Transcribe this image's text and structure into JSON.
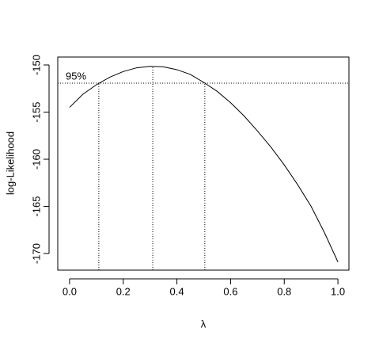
{
  "chart_data": {
    "type": "line",
    "x_label": "λ",
    "y_label": "log-Likelihood",
    "x": [
      0,
      0.05,
      0.1,
      0.15,
      0.2,
      0.25,
      0.3,
      0.35,
      0.4,
      0.45,
      0.5,
      0.55,
      0.6,
      0.65,
      0.7,
      0.75,
      0.8,
      0.85,
      0.9,
      0.95,
      1.0
    ],
    "series": [
      {
        "color": "#000000",
        "values": [
          -154.5,
          -153.1,
          -152.1,
          -151.3,
          -150.7,
          -150.3,
          -150.15,
          -150.2,
          -150.5,
          -151.0,
          -151.85,
          -152.8,
          -154.0,
          -155.4,
          -157.0,
          -158.7,
          -160.6,
          -162.7,
          -165.0,
          -167.8,
          -170.9
        ]
      }
    ],
    "xlim": [
      -0.044,
      1.041
    ],
    "ylim": [
      -171.76,
      -149.16
    ],
    "xticks": [
      {
        "value": 0,
        "label": "0.0"
      },
      0.2,
      0.4,
      0.6,
      0.8,
      {
        "value": 1,
        "label": "1.0"
      }
    ],
    "yticks": [
      -150,
      -155,
      -160,
      -165,
      -170
    ],
    "confidence_line": {
      "label": "95%",
      "y": -151.93
    },
    "vertical_lines": [
      {
        "x": 0.109,
        "y": -151.93
      },
      {
        "x": 0.31,
        "y": -150.15
      },
      {
        "x": 0.504,
        "y": -151.93
      }
    ]
  }
}
